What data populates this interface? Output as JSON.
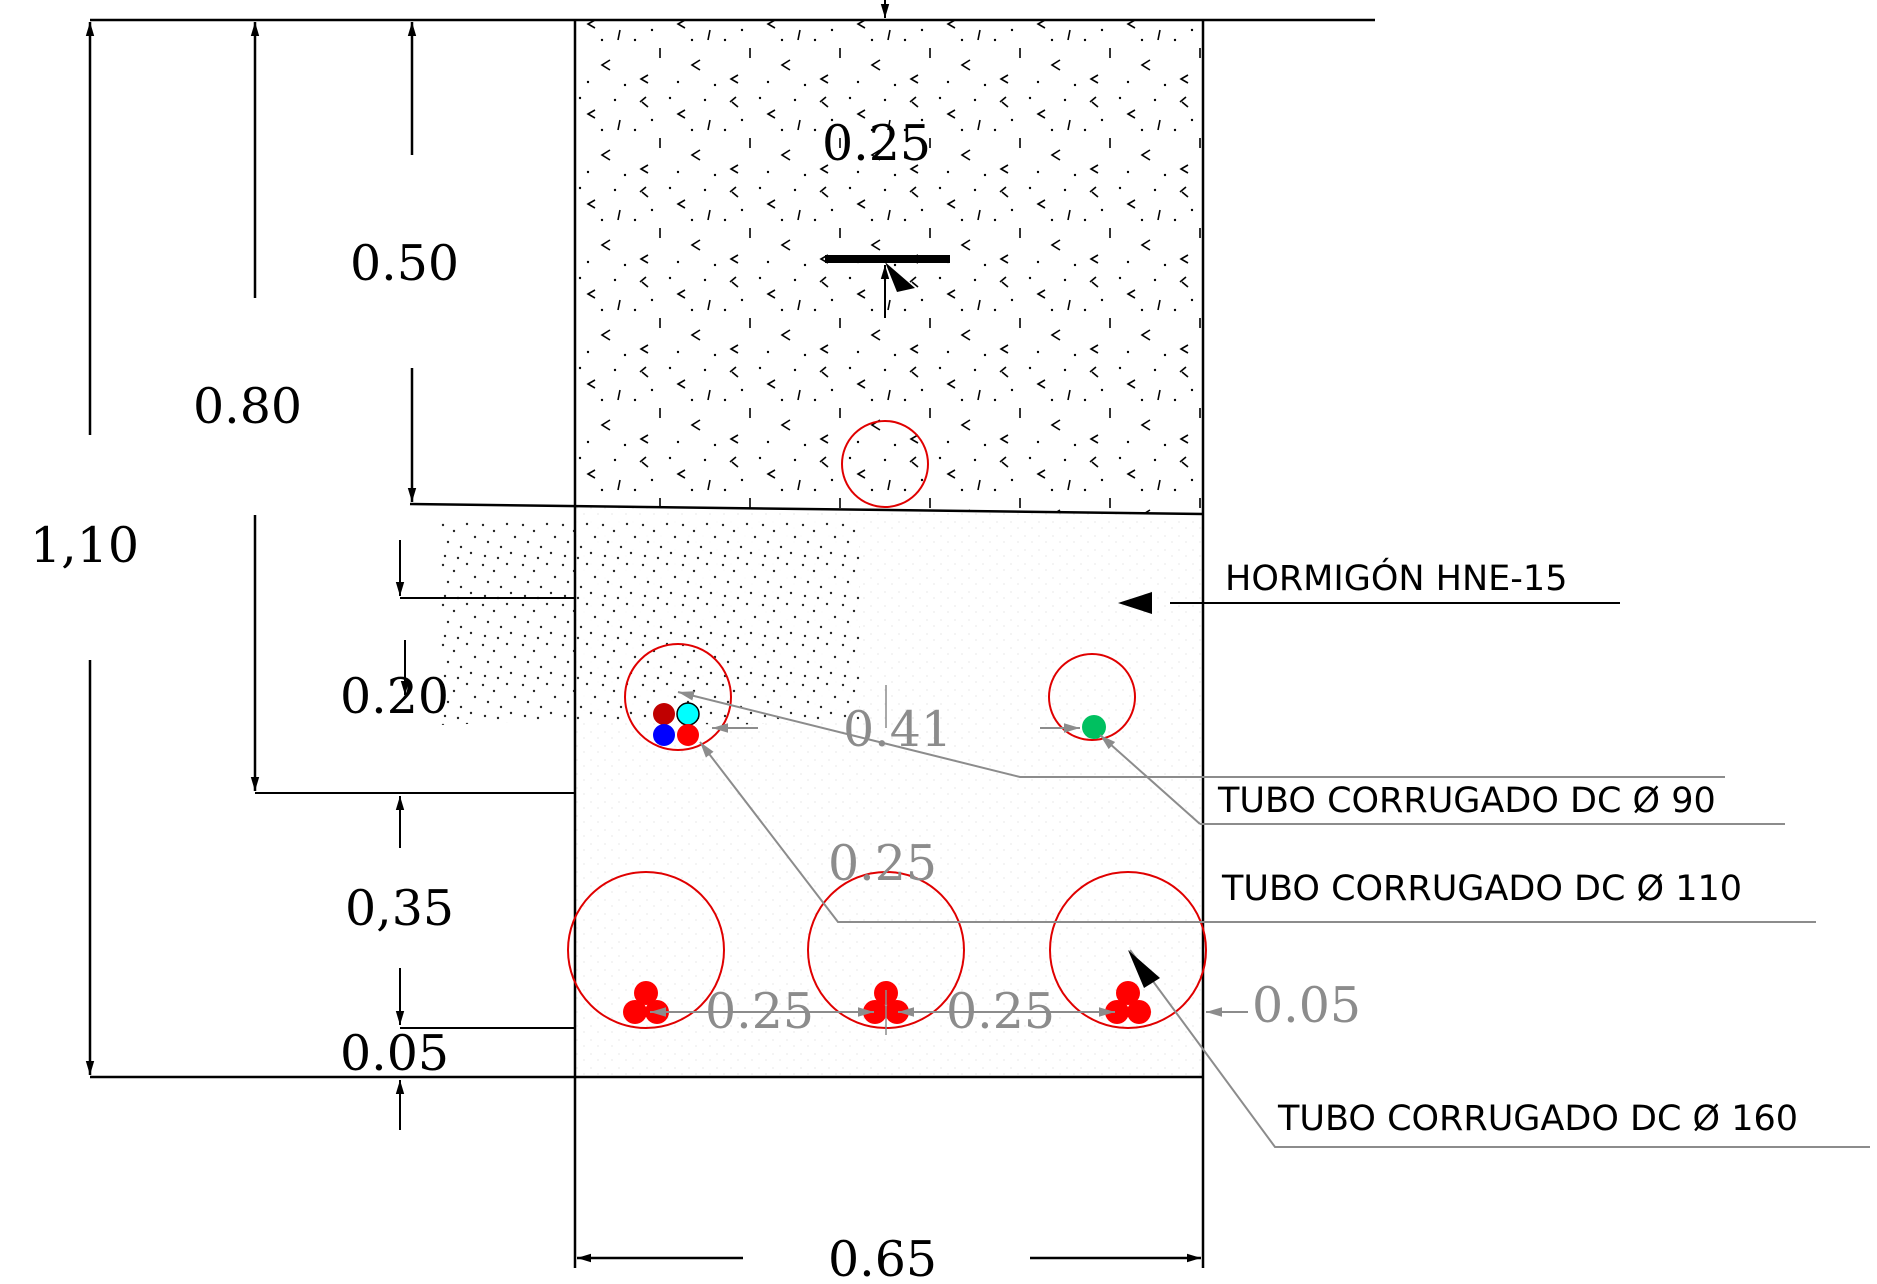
{
  "labels": {
    "concrete": "HORMIGÓN HNE-15",
    "tube90": "TUBO CORRUGADO DC Ø 90",
    "tube110": "TUBO CORRUGADO DC Ø 110",
    "tube160": "TUBO CORRUGADO DC Ø 160"
  },
  "dimensions": {
    "total_depth": "1,10",
    "depth_080": "0.80",
    "depth_050": "0.50",
    "depth_020": "0.20",
    "depth_035": "0,35",
    "depth_005_bottom": "0.05",
    "width": "0.65",
    "tape_depth": "0.25",
    "spacing_041": "0.41",
    "level_025": "0.25",
    "spacing_a": "0.25",
    "spacing_b": "0.25",
    "side_005": "0.05"
  },
  "colors": {
    "tube_outline": "#e00000",
    "cable_red": "#ff0000",
    "cable_darkred": "#c00000",
    "cable_blue": "#0000ff",
    "cable_cyan": "#00ffff",
    "cable_green": "#00c060",
    "leader_grey": "#8c8c8c"
  }
}
